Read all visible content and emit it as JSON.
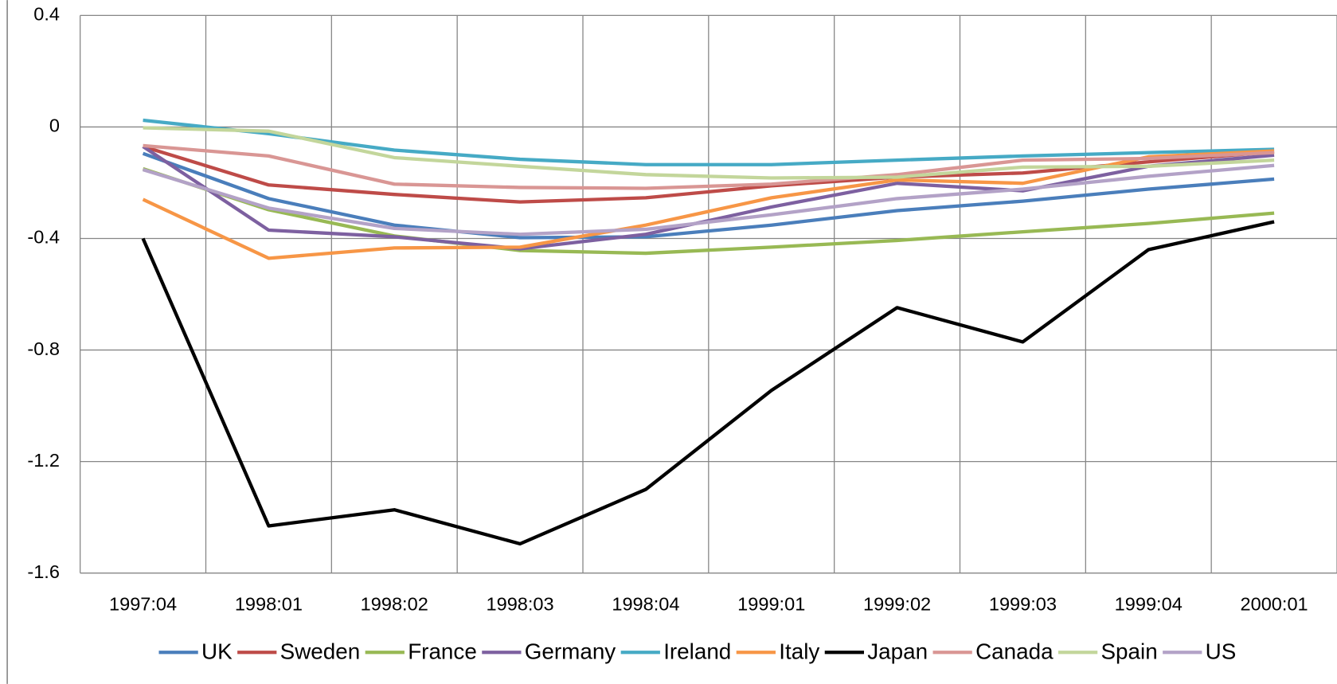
{
  "chart_data": {
    "type": "line",
    "categories": [
      "1997:04",
      "1998:01",
      "1998:02",
      "1998:03",
      "1998:04",
      "1999:01",
      "1999:02",
      "1999:03",
      "1999:04",
      "2000:01"
    ],
    "ylim": [
      -1.6,
      0.4
    ],
    "yticks": [
      0.4,
      0,
      -0.4,
      -0.8,
      -1.2,
      -1.6
    ],
    "grid": true,
    "legend": "bottom",
    "series": [
      {
        "name": "UK",
        "color": "#4a7ebb",
        "values": [
          -0.095,
          -0.257,
          -0.352,
          -0.397,
          -0.394,
          -0.352,
          -0.3,
          -0.266,
          -0.223,
          -0.187
        ]
      },
      {
        "name": "Sweden",
        "color": "#be4b48",
        "values": [
          -0.07,
          -0.208,
          -0.242,
          -0.269,
          -0.254,
          -0.211,
          -0.18,
          -0.165,
          -0.125,
          -0.089
        ]
      },
      {
        "name": "France",
        "color": "#98b954",
        "values": [
          -0.15,
          -0.297,
          -0.391,
          -0.443,
          -0.453,
          -0.431,
          -0.407,
          -0.376,
          -0.346,
          -0.309
        ]
      },
      {
        "name": "Germany",
        "color": "#7d60a0",
        "values": [
          -0.07,
          -0.37,
          -0.394,
          -0.437,
          -0.385,
          -0.287,
          -0.202,
          -0.229,
          -0.141,
          -0.101
        ]
      },
      {
        "name": "Ireland",
        "color": "#46aac5",
        "values": [
          0.024,
          -0.024,
          -0.083,
          -0.116,
          -0.135,
          -0.135,
          -0.119,
          -0.104,
          -0.092,
          -0.08
        ]
      },
      {
        "name": "Italy",
        "color": "#f79646",
        "values": [
          -0.26,
          -0.471,
          -0.434,
          -0.431,
          -0.352,
          -0.254,
          -0.19,
          -0.202,
          -0.107,
          -0.086
        ]
      },
      {
        "name": "Japan",
        "color": "#000000",
        "values": [
          -0.4,
          -1.431,
          -1.373,
          -1.495,
          -1.3,
          -0.945,
          -0.648,
          -0.771,
          -0.44,
          -0.34
        ]
      },
      {
        "name": "Canada",
        "color": "#d99694",
        "values": [
          -0.067,
          -0.104,
          -0.205,
          -0.217,
          -0.22,
          -0.205,
          -0.171,
          -0.119,
          -0.113,
          -0.092
        ]
      },
      {
        "name": "Spain",
        "color": "#c3d69b",
        "values": [
          -0.003,
          -0.015,
          -0.11,
          -0.141,
          -0.171,
          -0.183,
          -0.18,
          -0.144,
          -0.141,
          -0.119
        ]
      },
      {
        "name": "US",
        "color": "#b3a2c7",
        "values": [
          -0.153,
          -0.291,
          -0.364,
          -0.385,
          -0.367,
          -0.315,
          -0.257,
          -0.223,
          -0.177,
          -0.138
        ]
      }
    ]
  }
}
